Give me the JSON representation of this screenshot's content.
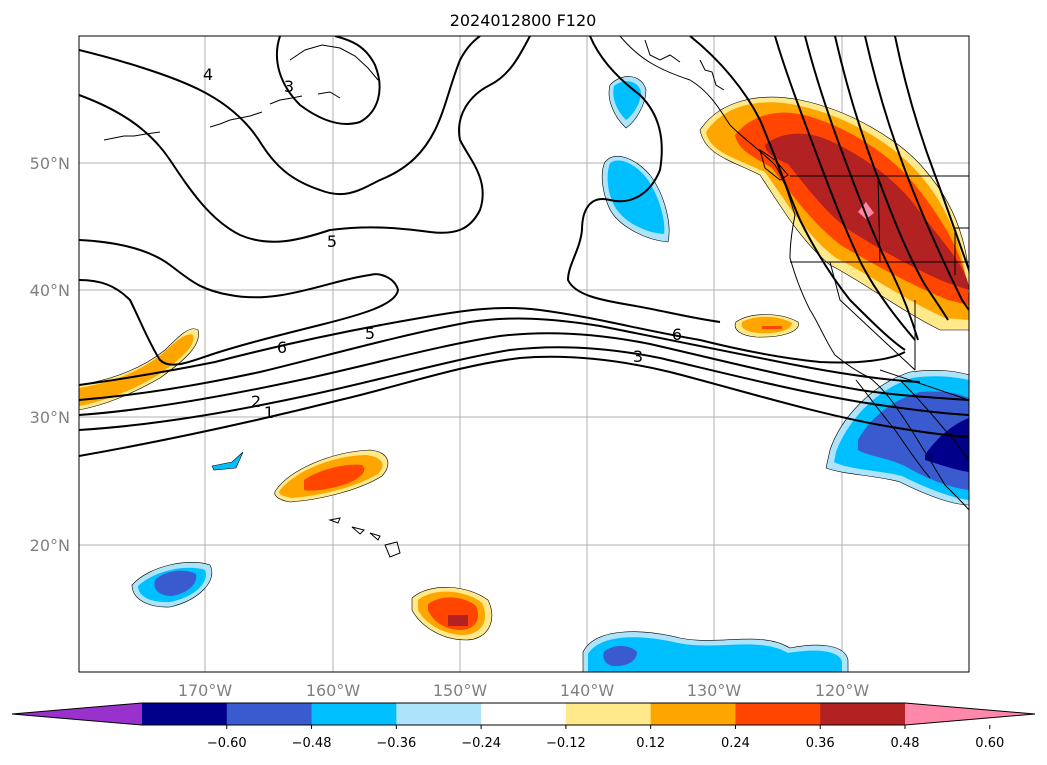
{
  "map": {
    "title": "2024012800 F120",
    "lat_labels": [
      "50°N",
      "40°N",
      "30°N",
      "20°N"
    ],
    "lon_labels": [
      "170°W",
      "160°W",
      "150°W",
      "140°W",
      "130°W",
      "120°W"
    ],
    "contour_labels": [
      "4",
      "3",
      "5",
      "6",
      "5",
      "6",
      "3",
      "2",
      "1"
    ],
    "colorbar": {
      "ticks": [
        "−0.60",
        "−0.48",
        "−0.36",
        "−0.24",
        "−0.12",
        "0.12",
        "0.24",
        "0.36",
        "0.48",
        "0.60"
      ],
      "colors": [
        "#9932cc",
        "#00008b",
        "#3a5bd0",
        "#00bfff",
        "#aee4fb",
        "#ffffff",
        "#ffe98a",
        "#ffa500",
        "#ff4500",
        "#b22222",
        "#ff88aa"
      ]
    }
  }
}
